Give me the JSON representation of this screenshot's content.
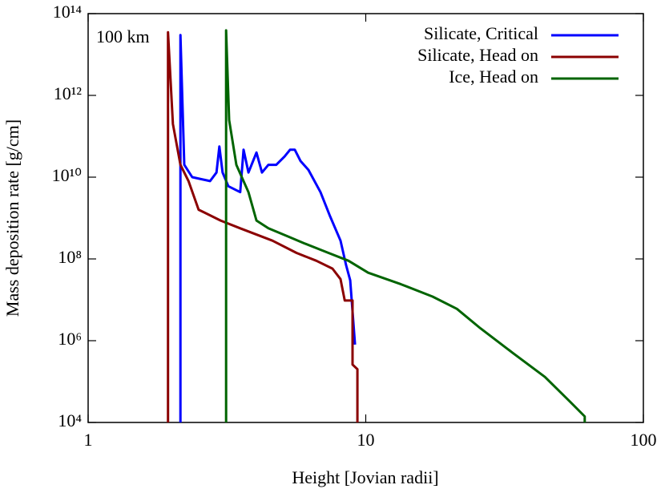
{
  "chart_data": {
    "type": "line",
    "x_label": "Height [Jovian radii]",
    "y_label": "Mass deposition rate [g/cm]",
    "annotation": "100 km",
    "xscale": "log",
    "yscale": "log",
    "legend": "upper right",
    "xlim": [
      1,
      100
    ],
    "xticks": [
      1,
      10,
      100
    ],
    "ylim": [
      10000,
      100000000000000
    ],
    "yticks": [
      {
        "value": 10000,
        "label": "10⁴"
      },
      {
        "value": 1000000,
        "label": "10⁶"
      },
      {
        "value": 100000000,
        "label": "10⁸"
      },
      {
        "value": 10000000000,
        "label": "10¹⁰"
      },
      {
        "value": 1000000000000,
        "label": "10¹²"
      },
      {
        "value": 100000000000000,
        "label": "10¹⁴"
      }
    ],
    "series": [
      {
        "name": "Silicate, Critical",
        "color": "#0000ff",
        "x": [
          2.15,
          2.15,
          2.22,
          2.37,
          2.75,
          2.9,
          2.97,
          3.05,
          3.2,
          3.53,
          3.63,
          3.78,
          4.04,
          4.23,
          4.46,
          4.76,
          5.1,
          5.34,
          5.55,
          5.82,
          6.22,
          6.87,
          7.44,
          8.11,
          8.5,
          8.79,
          9.15
        ],
        "values": [
          10000,
          30000000000000,
          20000000000,
          10000000000,
          8000000000,
          13000000000,
          56000000000,
          13000000000,
          6000000000,
          4300000000,
          47000000000,
          13000000000,
          40000000000,
          13000000000,
          20000000000,
          20000000000,
          32000000000,
          47000000000,
          47000000000,
          25000000000,
          15000000000,
          4300000000,
          1100000000,
          280000000,
          70000000,
          30000000,
          800000
        ]
      },
      {
        "name": "Silicate, Head on",
        "color": "#8b0000",
        "x": [
          1.94,
          1.94,
          2.02,
          2.15,
          2.3,
          2.5,
          3,
          3.53,
          4.61,
          5.63,
          6.64,
          7.59,
          8.11,
          8.4,
          8.96,
          8.96,
          9.33,
          9.33
        ],
        "values": [
          10000,
          35000000000000,
          200000000000,
          20000000000,
          8000000000,
          1600000000,
          870000000,
          560000000,
          280000000,
          140000000,
          90000000,
          58000000,
          32000000,
          9600000,
          9600000,
          260000,
          200000,
          10000
        ]
      },
      {
        "name": "Ice, Head on",
        "color": "#006400",
        "x": [
          3.14,
          3.14,
          3.22,
          3.42,
          3.78,
          4.04,
          4.46,
          5.27,
          6.01,
          7.34,
          8.67,
          10.2,
          13.4,
          17.4,
          21.3,
          25.9,
          33.9,
          44.2,
          54,
          61.5,
          61.5
        ],
        "values": [
          10000,
          39000000000000,
          250000000000,
          20000000000,
          4300000000,
          870000000,
          560000000,
          350000000,
          240000000,
          140000000,
          90000000,
          46000000,
          24000000,
          12000000,
          6000000,
          2000000,
          500000,
          130000,
          34000,
          14000,
          10000
        ]
      }
    ]
  }
}
